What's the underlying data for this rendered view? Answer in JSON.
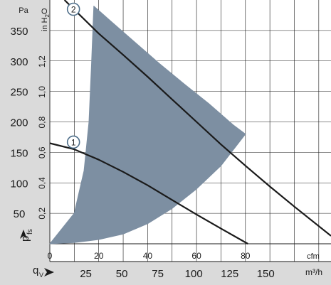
{
  "chart_data": {
    "type": "line",
    "title": "",
    "axes": {
      "pressure_pa": {
        "unit": "Pa",
        "ticks": [
          50,
          100,
          150,
          200,
          250,
          300,
          350
        ],
        "range": [
          0,
          400
        ]
      },
      "pressure_inh2o": {
        "unit": "in H2O",
        "ticks": [
          "0,2",
          "0,4",
          "0,6",
          "0,8",
          "1,0",
          "1,2"
        ],
        "tick_values": [
          0.2,
          0.4,
          0.6,
          0.8,
          1.0,
          1.2
        ]
      },
      "flow_cfm": {
        "unit": "cfm",
        "ticks": [
          "0",
          "20",
          "40",
          "60",
          "80"
        ],
        "tick_values": [
          0,
          20,
          40,
          60,
          80
        ],
        "range": [
          0,
          115
        ]
      },
      "flow_m3h": {
        "unit": "m³/h",
        "ticks": [
          "25",
          "50",
          "75",
          "100",
          "125",
          "150"
        ],
        "tick_values": [
          25,
          50,
          75,
          100,
          125,
          150
        ]
      },
      "y_symbol": {
        "main": "p",
        "sub": "fs"
      },
      "x_symbol": {
        "main": "q",
        "sub": "V"
      }
    },
    "grid": true,
    "series": [
      {
        "name": "1",
        "x": [
          0,
          10,
          20,
          30,
          40,
          50,
          60,
          70,
          81
        ],
        "y": [
          165,
          155,
          138,
          118,
          96,
          72,
          48,
          25,
          0
        ]
      },
      {
        "name": "2",
        "x": [
          6,
          20,
          30,
          40,
          50,
          60,
          70,
          80,
          90,
          100,
          115
        ],
        "y": [
          400,
          345,
          310,
          274,
          237,
          200,
          163,
          128,
          94,
          61,
          13
        ]
      }
    ],
    "operating_area": {
      "upper": {
        "x": [
          18,
          25,
          35,
          45,
          55,
          65,
          75,
          80
        ],
        "y": [
          390,
          365,
          330,
          295,
          262,
          230,
          195,
          180
        ]
      },
      "lower": {
        "x": [
          80,
          70,
          60,
          50,
          40,
          30,
          20,
          10,
          0
        ],
        "y": [
          180,
          128,
          90,
          58,
          33,
          16,
          7,
          2,
          0
        ]
      },
      "left": {
        "x": [
          0,
          10,
          14,
          16,
          17,
          18
        ],
        "y": [
          0,
          50,
          120,
          200,
          290,
          390
        ]
      }
    },
    "colors": {
      "area": "#7d8fa2",
      "curves": "#1a1a1a",
      "axis_band": "#dadada",
      "grid": "#1a1a1a",
      "marker_stroke": "#4f6f8a"
    }
  }
}
